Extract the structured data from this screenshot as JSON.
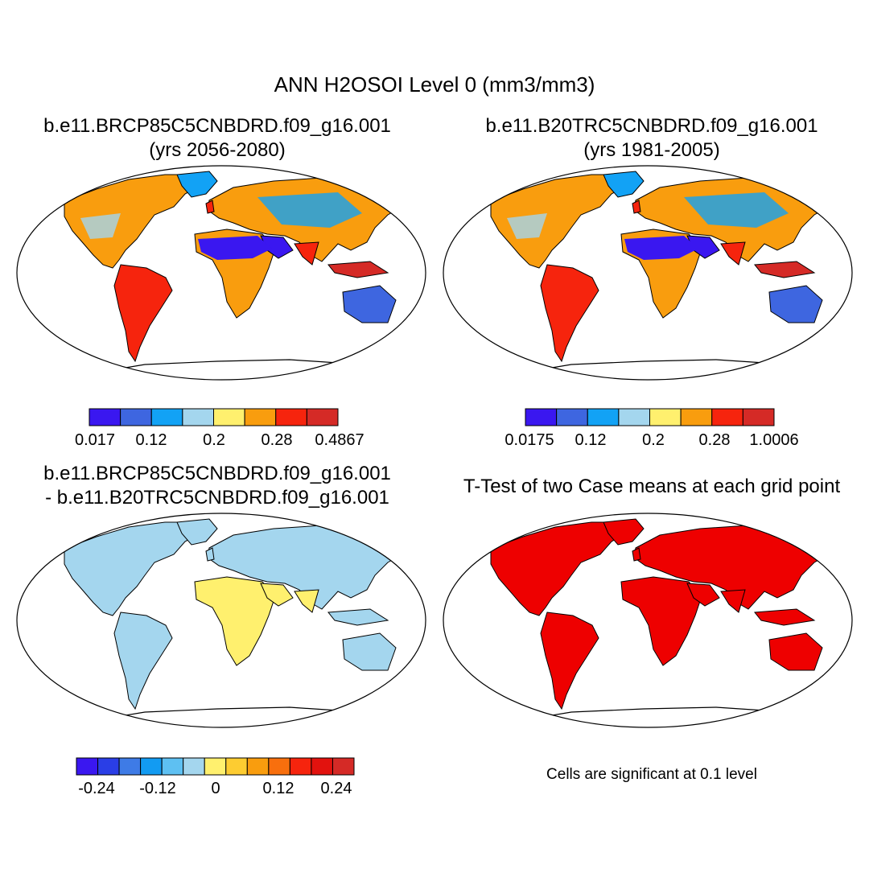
{
  "title": "ANN H2OSOI Level 0 (mm3/mm3)",
  "panels": [
    {
      "title_line1": "b.e11.BRCP85C5CNBDRD.f09_g16.001",
      "title_line2": "(yrs 2056-2080)",
      "colorbar": {
        "colors": [
          "#3a17f0",
          "#3e66e0",
          "#12a2f5",
          "#a4d6ee",
          "#fff06e",
          "#f99d0e",
          "#f6240d",
          "#d52a26"
        ],
        "tick_labels": [
          "0.017",
          "0.12",
          "0.2",
          "0.28",
          "0.4867"
        ]
      }
    },
    {
      "title_line1": "b.e11.B20TRC5CNBDRD.f09_g16.001",
      "title_line2": "(yrs 1981-2005)",
      "colorbar": {
        "colors": [
          "#3a17f0",
          "#3e66e0",
          "#12a2f5",
          "#a4d6ee",
          "#fff06e",
          "#f99d0e",
          "#f6240d",
          "#d52a26"
        ],
        "tick_labels": [
          "0.0175",
          "0.12",
          "0.2",
          "0.28",
          "1.0006"
        ]
      }
    },
    {
      "title_line1": "b.e11.BRCP85C5CNBDRD.f09_g16.001",
      "title_line2": "- b.e11.B20TRC5CNBDRD.f09_g16.001",
      "colorbar": {
        "colors": [
          "#3a17f0",
          "#2a3ee6",
          "#3e7be6",
          "#129bf2",
          "#5ec0f2",
          "#a4d6ee",
          "#fff06e",
          "#fdcc31",
          "#f99d0e",
          "#f86f0d",
          "#f6240d",
          "#e2120e",
          "#d52a26"
        ],
        "tick_labels": [
          "-0.24",
          "-0.12",
          "0",
          "0.12",
          "0.24"
        ]
      }
    },
    {
      "title_line1": "T-Test of two Case means at each grid point",
      "note": "Cells are significant at 0.1 level",
      "significant_color": "#ee0000"
    }
  ]
}
